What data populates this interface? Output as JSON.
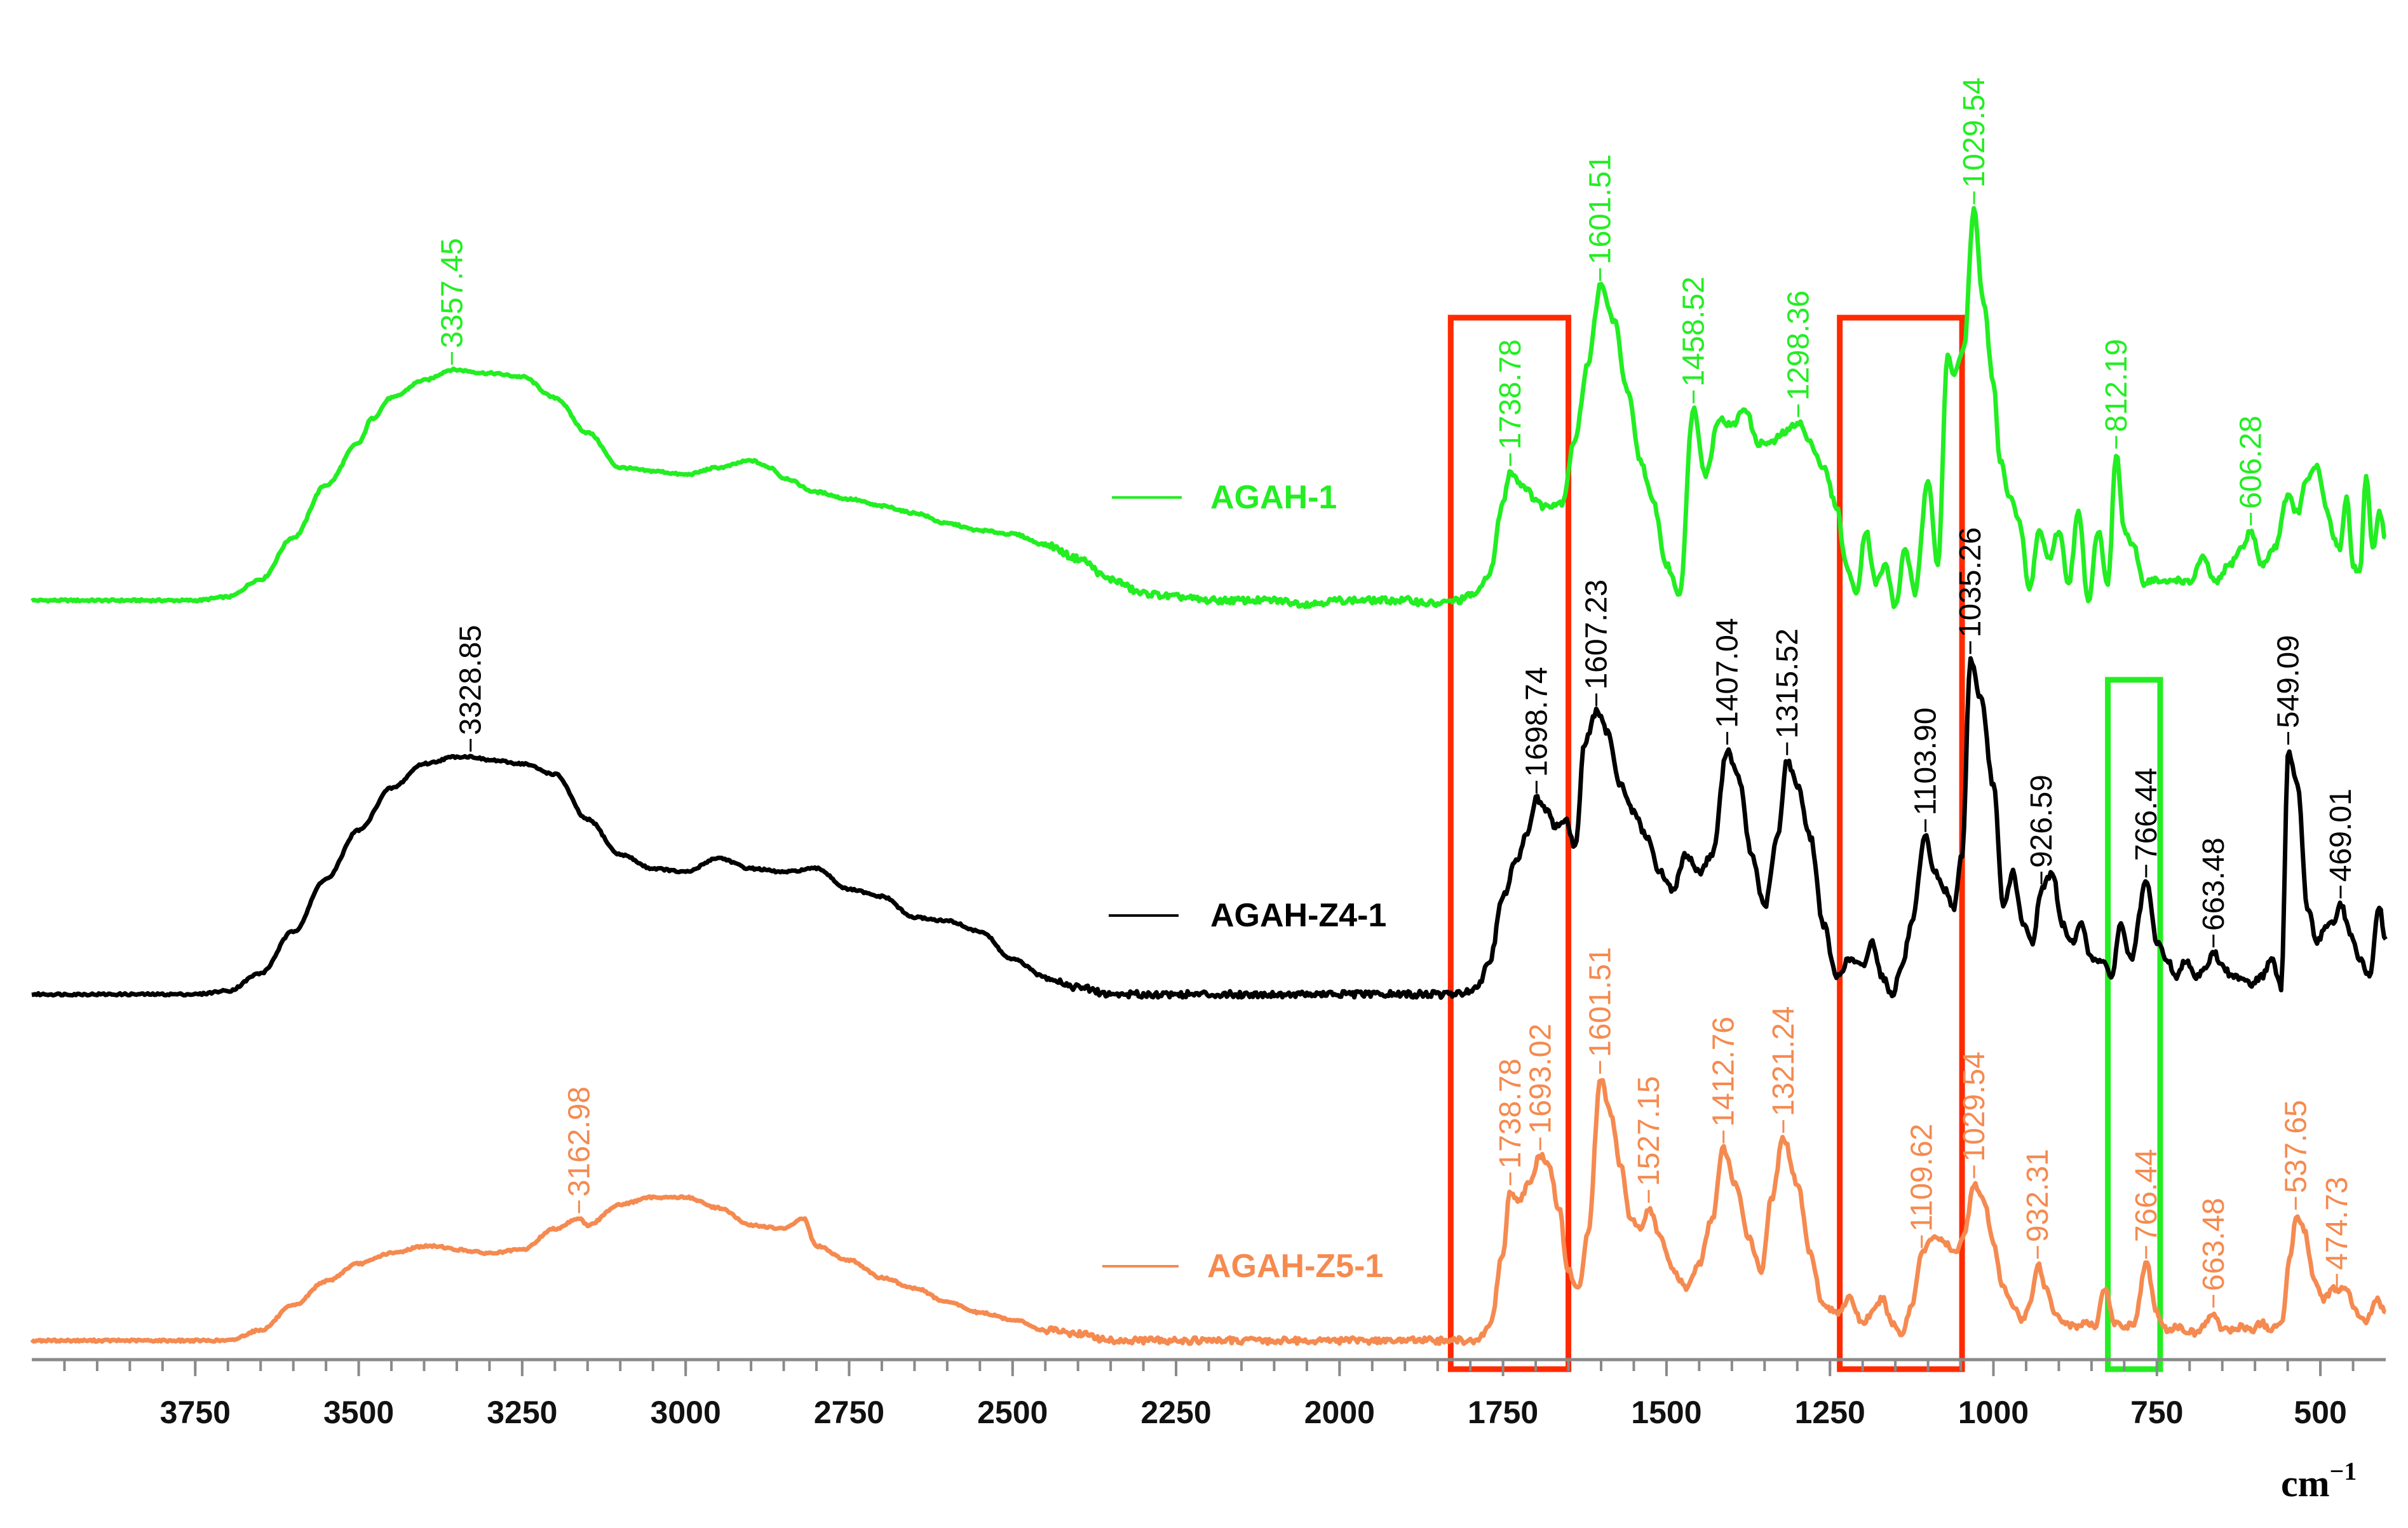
{
  "chart_data": {
    "type": "line",
    "title": "",
    "xlabel": "",
    "x_unit": "cm",
    "x_unit_exponent": "−1",
    "ylabel": "",
    "xlim": [
      4000,
      400
    ],
    "x_reversed": true,
    "x_ticks": [
      3750,
      3500,
      3250,
      3000,
      2750,
      2500,
      2250,
      2000,
      1750,
      1500,
      1250,
      1000,
      750,
      500
    ],
    "y_ticks": [],
    "grid": false,
    "legend_position": "right-inline",
    "series": [
      {
        "name": "AGAH-1",
        "color": "#22ee22",
        "peaks": [
          {
            "x": 3357.45,
            "label": "3357.45"
          },
          {
            "x": 1738.78,
            "label": "1738.78"
          },
          {
            "x": 1601.51,
            "label": "1601.51"
          },
          {
            "x": 1458.52,
            "label": "1458.52"
          },
          {
            "x": 1298.36,
            "label": "1298.36"
          },
          {
            "x": 1029.54,
            "label": "1029.54"
          },
          {
            "x": 812.19,
            "label": "812.19"
          },
          {
            "x": 606.28,
            "label": "606.28"
          }
        ],
        "x": [
          4000,
          3900,
          3800,
          3750,
          3700,
          3650,
          3600,
          3550,
          3500,
          3480,
          3450,
          3400,
          3357,
          3300,
          3250,
          3200,
          3150,
          3100,
          3050,
          3000,
          2950,
          2900,
          2870,
          2850,
          2800,
          2750,
          2700,
          2650,
          2600,
          2550,
          2500,
          2450,
          2400,
          2350,
          2300,
          2250,
          2200,
          2150,
          2100,
          2050,
          2000,
          1950,
          1900,
          1850,
          1820,
          1790,
          1770,
          1750,
          1739,
          1720,
          1700,
          1690,
          1660,
          1640,
          1620,
          1601,
          1580,
          1560,
          1540,
          1520,
          1500,
          1480,
          1459,
          1440,
          1420,
          1400,
          1380,
          1360,
          1340,
          1320,
          1298,
          1280,
          1260,
          1240,
          1225,
          1210,
          1195,
          1180,
          1165,
          1150,
          1135,
          1120,
          1100,
          1085,
          1070,
          1060,
          1045,
          1030,
          1015,
          1000,
          990,
          975,
          960,
          945,
          930,
          915,
          900,
          885,
          870,
          855,
          840,
          825,
          812,
          800,
          785,
          770,
          755,
          740,
          720,
          700,
          680,
          660,
          640,
          620,
          606,
          590,
          570,
          550,
          535,
          520,
          505,
          490,
          480,
          470,
          460,
          450,
          440,
          430,
          420,
          410,
          400
        ],
        "y": [
          0.0,
          0.0,
          0.0,
          0.0,
          0.01,
          0.06,
          0.18,
          0.33,
          0.45,
          0.52,
          0.58,
          0.63,
          0.66,
          0.65,
          0.64,
          0.58,
          0.48,
          0.38,
          0.37,
          0.36,
          0.38,
          0.4,
          0.38,
          0.35,
          0.31,
          0.29,
          0.27,
          0.25,
          0.22,
          0.2,
          0.19,
          0.16,
          0.12,
          0.06,
          0.02,
          0.01,
          0.0,
          0.0,
          0.0,
          -0.01,
          0.0,
          0.0,
          0.0,
          -0.01,
          0.0,
          0.02,
          0.08,
          0.28,
          0.37,
          0.33,
          0.29,
          0.27,
          0.28,
          0.46,
          0.68,
          0.9,
          0.8,
          0.6,
          0.4,
          0.28,
          0.1,
          0.02,
          0.55,
          0.36,
          0.52,
          0.5,
          0.55,
          0.45,
          0.45,
          0.48,
          0.51,
          0.45,
          0.38,
          0.27,
          0.1,
          0.02,
          0.2,
          0.05,
          0.1,
          -0.02,
          0.15,
          0.02,
          0.35,
          0.1,
          0.7,
          0.65,
          0.72,
          1.12,
          0.85,
          0.62,
          0.4,
          0.3,
          0.22,
          0.03,
          0.2,
          0.12,
          0.2,
          0.05,
          0.25,
          0.0,
          0.2,
          0.05,
          0.42,
          0.2,
          0.15,
          0.05,
          0.06,
          0.05,
          0.06,
          0.05,
          0.12,
          0.05,
          0.1,
          0.15,
          0.2,
          0.1,
          0.15,
          0.3,
          0.25,
          0.35,
          0.38,
          0.26,
          0.18,
          0.15,
          0.3,
          0.1,
          0.08,
          0.35,
          0.15,
          0.25,
          0.18
        ]
      },
      {
        "name": "AGAH-Z4-1",
        "color": "#000000",
        "peaks": [
          {
            "x": 3328.85,
            "label": "3328.85"
          },
          {
            "x": 1698.74,
            "label": "1698.74"
          },
          {
            "x": 1607.23,
            "label": "1607.23"
          },
          {
            "x": 1407.04,
            "label": "1407.04"
          },
          {
            "x": 1315.52,
            "label": "1315.52"
          },
          {
            "x": 1103.9,
            "label": "1103.90"
          },
          {
            "x": 1035.26,
            "label": "1035.26"
          },
          {
            "x": 926.59,
            "label": "926.59"
          },
          {
            "x": 766.44,
            "label": "766.44"
          },
          {
            "x": 663.48,
            "label": "663.48"
          },
          {
            "x": 549.09,
            "label": "549.09"
          },
          {
            "x": 469.01,
            "label": "469.01"
          }
        ],
        "x": [
          4000,
          3900,
          3800,
          3750,
          3700,
          3650,
          3600,
          3550,
          3500,
          3450,
          3400,
          3350,
          3329,
          3300,
          3250,
          3200,
          3150,
          3100,
          3050,
          3000,
          2950,
          2900,
          2850,
          2800,
          2750,
          2700,
          2650,
          2600,
          2550,
          2500,
          2450,
          2400,
          2350,
          2300,
          2250,
          2200,
          2150,
          2100,
          2050,
          2000,
          1950,
          1900,
          1850,
          1820,
          1790,
          1770,
          1750,
          1730,
          1715,
          1699,
          1685,
          1670,
          1655,
          1640,
          1625,
          1607,
          1590,
          1570,
          1550,
          1530,
          1510,
          1490,
          1470,
          1450,
          1430,
          1407,
          1390,
          1370,
          1350,
          1330,
          1316,
          1300,
          1280,
          1260,
          1240,
          1220,
          1200,
          1185,
          1170,
          1155,
          1140,
          1125,
          1104,
          1090,
          1075,
          1060,
          1048,
          1035,
          1020,
          1000,
          985,
          970,
          955,
          940,
          927,
          910,
          895,
          880,
          865,
          850,
          835,
          820,
          805,
          790,
          766,
          750,
          735,
          720,
          705,
          690,
          675,
          663,
          650,
          635,
          620,
          605,
          590,
          575,
          560,
          549,
          535,
          520,
          505,
          490,
          480,
          469,
          455,
          440,
          425,
          410,
          400
        ],
        "y": [
          0.0,
          0.0,
          0.0,
          0.0,
          0.01,
          0.06,
          0.18,
          0.33,
          0.47,
          0.59,
          0.66,
          0.68,
          0.68,
          0.67,
          0.66,
          0.63,
          0.5,
          0.4,
          0.36,
          0.35,
          0.39,
          0.36,
          0.35,
          0.36,
          0.3,
          0.28,
          0.22,
          0.21,
          0.18,
          0.1,
          0.05,
          0.02,
          0.0,
          0.0,
          0.0,
          0.0,
          0.0,
          0.0,
          0.0,
          0.0,
          0.0,
          0.0,
          0.0,
          0.0,
          0.02,
          0.1,
          0.28,
          0.38,
          0.45,
          0.56,
          0.53,
          0.48,
          0.5,
          0.42,
          0.72,
          0.81,
          0.75,
          0.6,
          0.52,
          0.45,
          0.35,
          0.3,
          0.4,
          0.35,
          0.4,
          0.7,
          0.62,
          0.4,
          0.25,
          0.45,
          0.67,
          0.6,
          0.45,
          0.2,
          0.05,
          0.1,
          0.08,
          0.15,
          0.05,
          0.0,
          0.08,
          0.2,
          0.45,
          0.35,
          0.3,
          0.25,
          0.4,
          0.96,
          0.85,
          0.6,
          0.25,
          0.35,
          0.2,
          0.15,
          0.3,
          0.35,
          0.2,
          0.15,
          0.2,
          0.1,
          0.1,
          0.05,
          0.2,
          0.1,
          0.32,
          0.15,
          0.1,
          0.05,
          0.1,
          0.05,
          0.08,
          0.12,
          0.08,
          0.05,
          0.05,
          0.03,
          0.05,
          0.1,
          0.02,
          0.7,
          0.6,
          0.25,
          0.15,
          0.2,
          0.2,
          0.26,
          0.18,
          0.1,
          0.05,
          0.25,
          0.15
        ]
      },
      {
        "name": "AGAH-Z5-1",
        "color": "#f58a50",
        "peaks": [
          {
            "x": 3162.98,
            "label": "3162.98"
          },
          {
            "x": 1738.78,
            "label": "1738.78"
          },
          {
            "x": 1693.02,
            "label": "1693.02"
          },
          {
            "x": 1601.51,
            "label": "1601.51"
          },
          {
            "x": 1527.15,
            "label": "1527.15"
          },
          {
            "x": 1412.76,
            "label": "1412.76"
          },
          {
            "x": 1321.24,
            "label": "1321.24"
          },
          {
            "x": 1109.62,
            "label": "1109.62"
          },
          {
            "x": 1029.54,
            "label": "1029.54"
          },
          {
            "x": 932.31,
            "label": "932.31"
          },
          {
            "x": 766.44,
            "label": "766.44"
          },
          {
            "x": 663.48,
            "label": "663.48"
          },
          {
            "x": 537.65,
            "label": "537.65"
          },
          {
            "x": 474.73,
            "label": "474.73"
          }
        ],
        "x": [
          4000,
          3900,
          3800,
          3750,
          3700,
          3650,
          3600,
          3550,
          3500,
          3450,
          3400,
          3380,
          3350,
          3300,
          3250,
          3200,
          3163,
          3150,
          3100,
          3050,
          3000,
          2950,
          2900,
          2850,
          2820,
          2800,
          2750,
          2700,
          2650,
          2600,
          2550,
          2500,
          2450,
          2400,
          2350,
          2300,
          2250,
          2200,
          2150,
          2100,
          2050,
          2000,
          1950,
          1900,
          1850,
          1820,
          1790,
          1770,
          1750,
          1739,
          1725,
          1710,
          1693,
          1680,
          1665,
          1650,
          1635,
          1620,
          1601,
          1585,
          1570,
          1555,
          1540,
          1527,
          1510,
          1490,
          1470,
          1450,
          1430,
          1413,
          1395,
          1375,
          1355,
          1340,
          1321,
          1300,
          1280,
          1260,
          1240,
          1220,
          1200,
          1185,
          1170,
          1155,
          1140,
          1125,
          1110,
          1090,
          1075,
          1060,
          1045,
          1030,
          1015,
          1000,
          985,
          970,
          955,
          945,
          932,
          920,
          905,
          890,
          875,
          860,
          845,
          830,
          815,
          800,
          785,
          766,
          750,
          735,
          720,
          705,
          690,
          675,
          663,
          650,
          635,
          620,
          605,
          590,
          575,
          560,
          545,
          538,
          525,
          510,
          495,
          480,
          475,
          460,
          445,
          430,
          415,
          400
        ],
        "y": [
          0.0,
          0.0,
          0.0,
          0.0,
          0.0,
          0.03,
          0.1,
          0.17,
          0.22,
          0.25,
          0.27,
          0.27,
          0.26,
          0.25,
          0.26,
          0.32,
          0.35,
          0.33,
          0.39,
          0.41,
          0.41,
          0.38,
          0.33,
          0.32,
          0.35,
          0.27,
          0.23,
          0.18,
          0.15,
          0.11,
          0.08,
          0.06,
          0.03,
          0.02,
          0.0,
          0.0,
          0.0,
          0.0,
          0.0,
          0.0,
          0.0,
          0.0,
          0.0,
          0.0,
          0.0,
          0.0,
          0.0,
          0.04,
          0.25,
          0.43,
          0.4,
          0.45,
          0.53,
          0.5,
          0.38,
          0.2,
          0.15,
          0.3,
          0.75,
          0.65,
          0.5,
          0.35,
          0.32,
          0.38,
          0.3,
          0.2,
          0.15,
          0.22,
          0.35,
          0.55,
          0.45,
          0.3,
          0.2,
          0.4,
          0.58,
          0.45,
          0.25,
          0.1,
          0.08,
          0.12,
          0.05,
          0.08,
          0.12,
          0.05,
          0.02,
          0.1,
          0.25,
          0.3,
          0.28,
          0.25,
          0.3,
          0.45,
          0.4,
          0.28,
          0.15,
          0.1,
          0.06,
          0.1,
          0.22,
          0.15,
          0.08,
          0.05,
          0.04,
          0.05,
          0.04,
          0.15,
          0.05,
          0.04,
          0.05,
          0.22,
          0.08,
          0.03,
          0.04,
          0.03,
          0.02,
          0.05,
          0.08,
          0.03,
          0.03,
          0.04,
          0.03,
          0.05,
          0.03,
          0.05,
          0.25,
          0.36,
          0.32,
          0.18,
          0.12,
          0.15,
          0.14,
          0.15,
          0.08,
          0.05,
          0.12,
          0.08
        ]
      }
    ],
    "highlight_boxes": [
      {
        "from": 1830,
        "to": 1650,
        "color": "#ff2a00"
      },
      {
        "from": 1235,
        "to": 1048,
        "color": "#ff2a00"
      },
      {
        "from": 825,
        "to": 745,
        "color": "#22ee22"
      }
    ]
  }
}
